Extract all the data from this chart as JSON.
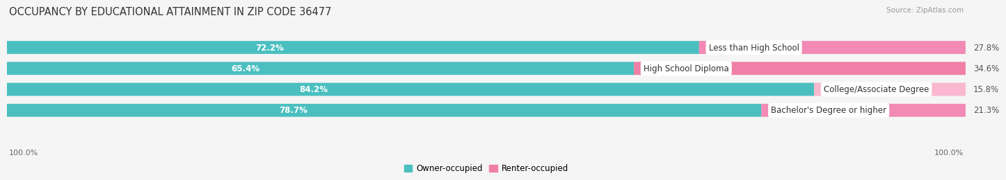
{
  "title": "OCCUPANCY BY EDUCATIONAL ATTAINMENT IN ZIP CODE 36477",
  "source": "Source: ZipAtlas.com",
  "categories": [
    "Less than High School",
    "High School Diploma",
    "College/Associate Degree",
    "Bachelor's Degree or higher"
  ],
  "owner_pct": [
    72.2,
    65.4,
    84.2,
    78.7
  ],
  "renter_pct": [
    27.8,
    34.6,
    15.8,
    21.3
  ],
  "owner_color": "#4BBFC0",
  "renter_color": "#F07FA8",
  "renter_color_light": "#F9B8CF",
  "bar_bg_color": "#E8E8E8",
  "background_color": "#F5F5F5",
  "title_fontsize": 10.5,
  "label_fontsize": 8.5,
  "pct_fontsize": 8.5,
  "source_fontsize": 7.5,
  "tick_fontsize": 8,
  "left_label": "100.0%",
  "right_label": "100.0%"
}
